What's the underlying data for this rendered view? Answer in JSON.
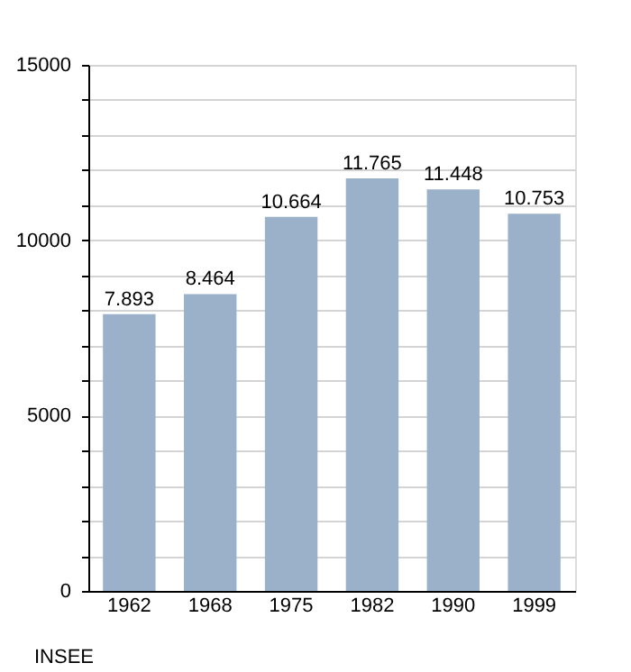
{
  "chart_data": {
    "type": "bar",
    "categories": [
      "1962",
      "1968",
      "1975",
      "1982",
      "1990",
      "1999"
    ],
    "values": [
      7893,
      8464,
      10664,
      11765,
      11448,
      10753
    ],
    "value_labels": [
      "7.893",
      "8.464",
      "10.664",
      "11.765",
      "11.448",
      "10.753"
    ],
    "color": "#9bb1ca",
    "ylim": [
      0,
      15000
    ],
    "yticks": [
      0,
      {
        "value": 1000,
        "label": null
      },
      {
        "value": 2000,
        "label": null
      },
      {
        "value": 3000,
        "label": null
      },
      {
        "value": 4000,
        "label": null
      },
      5000,
      {
        "value": 6000,
        "label": null
      },
      {
        "value": 7000,
        "label": null
      },
      {
        "value": 8000,
        "label": null
      },
      {
        "value": 9000,
        "label": null
      },
      10000,
      {
        "value": 11000,
        "label": null
      },
      {
        "value": 12000,
        "label": null
      },
      {
        "value": 13000,
        "label": null
      },
      {
        "value": 14000,
        "label": null
      },
      15000
    ],
    "grid": "y",
    "annotations": [
      "INSEE"
    ]
  }
}
